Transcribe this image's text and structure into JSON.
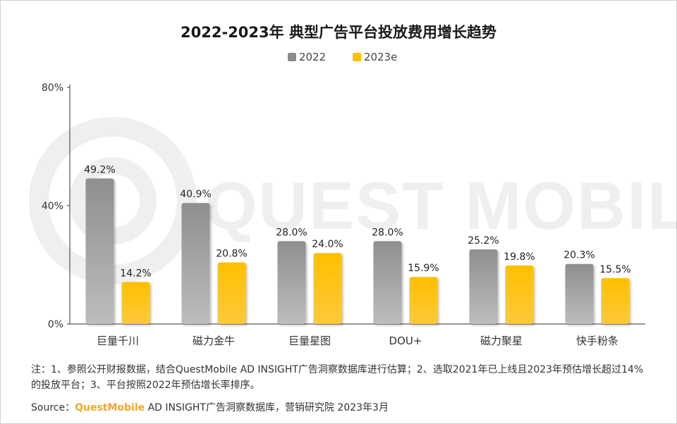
{
  "chart_data": {
    "type": "bar",
    "title": "2022-2023年 典型广告平台投放费用增长趋势",
    "categories": [
      "巨量千川",
      "磁力金牛",
      "巨量星图",
      "DOU+",
      "磁力聚星",
      "快手粉条"
    ],
    "series": [
      {
        "name": "2022",
        "values": [
          49.2,
          40.9,
          28.0,
          28.0,
          25.2,
          20.3
        ],
        "labels": [
          "49.2%",
          "40.9%",
          "28.0%",
          "28.0%",
          "25.2%",
          "20.3%"
        ],
        "color": "#8c8c8c"
      },
      {
        "name": "2023e",
        "values": [
          14.2,
          20.8,
          24.0,
          15.9,
          19.8,
          15.5
        ],
        "labels": [
          "14.2%",
          "20.8%",
          "24.0%",
          "15.9%",
          "19.8%",
          "15.5%"
        ],
        "color": "#ffc000"
      }
    ],
    "yticks": [
      "0%",
      "40%",
      "80%"
    ],
    "ylim": [
      0,
      80
    ],
    "legend_position": "top-center",
    "grid": false
  },
  "watermark": "QUEST MOBILE",
  "note": "注：1、参照公开财报数据，结合QuestMobile AD INSIGHT广告洞察数据库进行估算；2、选取2021年已上线且2023年预估增长超过14%的投放平台；3、平台按照2022年预估增长率排序。",
  "source": {
    "prefix": "Source：",
    "brand": "QuestMobile",
    "rest": " AD INSIGHT广告洞察数据库，营销研究院 2023年3月"
  }
}
